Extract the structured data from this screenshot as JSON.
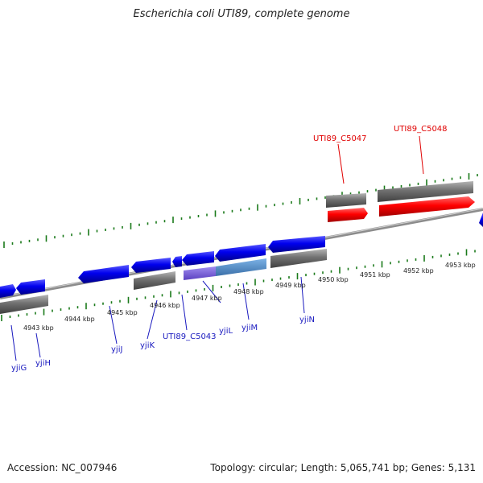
{
  "title": "Escherichia coli UTI89, complete genome",
  "footer": {
    "accession": "Accession: NC_007946",
    "topology": "Topology: circular; Length: 5,065,741 bp; Genes: 5,131"
  },
  "kbp_labels": [
    "4943 kbp",
    "4944 kbp",
    "4945 kbp",
    "4946 kbp",
    "4947 kbp",
    "4948 kbp",
    "4949 kbp",
    "4950 kbp",
    "4951 kbp",
    "4952 kbp",
    "4953 kbp"
  ],
  "genes": {
    "yjiG": "yjiG",
    "yjiH": "yjiH",
    "yjiJ": "yjiJ",
    "yjiK": "yjiK",
    "UTI89_C5043": "UTI89_C5043",
    "yjiL": "yjiL",
    "yjiM": "yjiM",
    "yjiN": "yjiN",
    "UTI89_C5047": "UTI89_C5047",
    "UTI89_C5048": "UTI89_C5048"
  },
  "colors": {
    "forward_gene": "#ff0000",
    "reverse_gene": "#0000ee",
    "cds_gray": "#777777",
    "backbone": "#8c8c8c",
    "tick": "#1a7a1a",
    "highlight_purple": "#7a60d8",
    "highlight_steel": "#4f8bc9"
  }
}
